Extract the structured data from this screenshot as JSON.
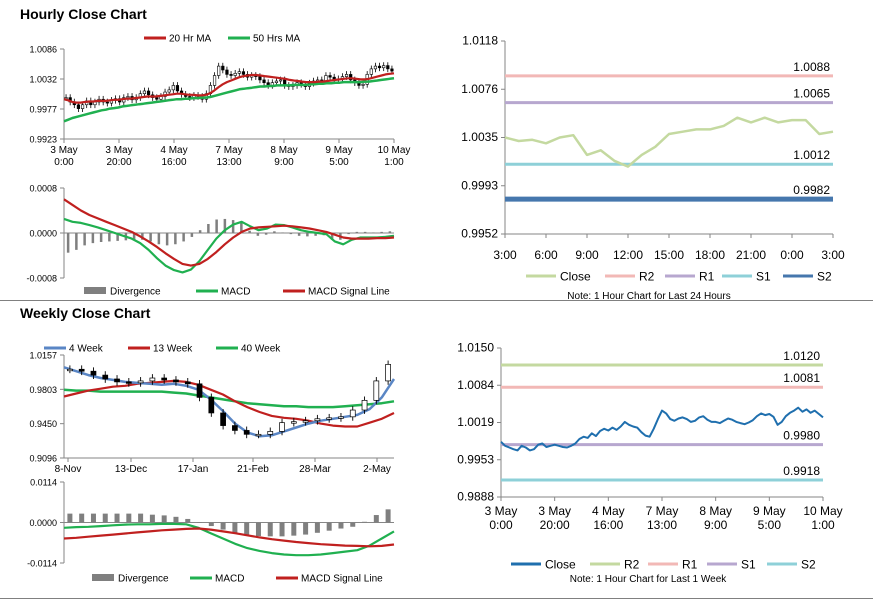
{
  "sections": {
    "hourly_title": "Hourly Close Chart",
    "weekly_title": "Weekly Close Chart"
  },
  "colors": {
    "ma20": "#c0201f",
    "ma50": "#20b050",
    "week4": "#5a86c5",
    "macd": "#20b050",
    "signal": "#c0201f",
    "divergence": "#7f7f7f",
    "close_light": "#c4d9a0",
    "r2": "#f2b8b6",
    "r1": "#b7a7cf",
    "s1": "#8ed0d8",
    "s2": "#4677ad",
    "close_dark": "#1f6fae",
    "r2_dark": "#c4d9a0",
    "r1_dark": "#f2b8b6",
    "s1_dark": "#b7a7cf",
    "s2_dark": "#8ed0d8"
  },
  "chart_data": [
    {
      "id": "hourly_price",
      "type": "candlestick",
      "legend": [
        "20 Hr MA",
        "50 Hrs MA"
      ],
      "y_ticks": [
        "1.0086",
        "1.0032",
        "0.9977",
        "0.9923"
      ],
      "ylim": [
        0.9923,
        1.0086
      ],
      "x_ticks": [
        [
          "3 May",
          "0:00"
        ],
        [
          "3 May",
          "20:00"
        ],
        [
          "4 May",
          "16:00"
        ],
        [
          "7 May",
          "13:00"
        ],
        [
          "8 May",
          "9:00"
        ],
        [
          "9 May",
          "5:00"
        ],
        [
          "10 May",
          "1:00"
        ]
      ],
      "close": [
        0.9998,
        0.999,
        0.9985,
        0.9978,
        0.9985,
        0.9992,
        0.9985,
        0.999,
        0.9995,
        0.999,
        0.9988,
        0.9993,
        0.9996,
        0.999,
        0.9998,
        1.0,
        0.9994,
        0.9998,
        1.0005,
        1.001,
        1.0003,
        0.9998,
        0.9995,
        1.0,
        1.0008,
        1.0012,
        1.002,
        1.001,
        1.0004,
        1.0,
        0.9998,
        1.0002,
        1.0,
        0.9995,
        1.0005,
        1.002,
        1.0038,
        1.0055,
        1.0048,
        1.004,
        1.0038,
        1.0042,
        1.0045,
        1.004,
        1.0035,
        1.0038,
        1.0036,
        1.003,
        1.0025,
        1.002,
        1.0025,
        1.0028,
        1.003,
        1.002,
        1.0018,
        1.002,
        1.0025,
        1.0022,
        1.0018,
        1.0024,
        1.0028,
        1.003,
        1.0028,
        1.0038,
        1.0035,
        1.003,
        1.0032,
        1.0036,
        1.004,
        1.003,
        1.0025,
        1.002,
        1.0022,
        1.004,
        1.005,
        1.0055,
        1.0052,
        1.0056,
        1.005,
        1.0046
      ],
      "ma20": [
        0.9995,
        0.9993,
        0.999,
        0.9989,
        0.9989,
        0.999,
        0.9991,
        0.9991,
        0.9992,
        0.9992,
        0.9992,
        0.9993,
        0.9994,
        0.9994,
        0.9995,
        0.9996,
        0.9996,
        0.9997,
        0.9998,
        0.9999,
        1.0,
        1.0,
        1.0,
        1.0001,
        1.0002,
        1.0003,
        1.0004,
        1.0005,
        1.0005,
        1.0004,
        1.0003,
        1.0003,
        1.0002,
        1.0002,
        1.0003,
        1.0006,
        1.0011,
        1.0017,
        1.0022,
        1.0026,
        1.0029,
        1.0032,
        1.0035,
        1.0037,
        1.0038,
        1.0039,
        1.0039,
        1.0038,
        1.0037,
        1.0036,
        1.0035,
        1.0034,
        1.0033,
        1.0032,
        1.003,
        1.0029,
        1.0028,
        1.0027,
        1.0026,
        1.0026,
        1.0026,
        1.0027,
        1.0027,
        1.0028,
        1.0029,
        1.003,
        1.0031,
        1.0032,
        1.0033,
        1.0033,
        1.0032,
        1.0031,
        1.0031,
        1.0032,
        1.0034,
        1.0036,
        1.0038,
        1.004,
        1.0041,
        1.0042
      ],
      "ma50": [
        0.9955,
        0.9958,
        0.9961,
        0.9963,
        0.9965,
        0.9967,
        0.9969,
        0.9971,
        0.9973,
        0.9975,
        0.9976,
        0.9978,
        0.9979,
        0.998,
        0.9982,
        0.9983,
        0.9984,
        0.9985,
        0.9986,
        0.9987,
        0.9988,
        0.9989,
        0.999,
        0.9991,
        0.9992,
        0.9993,
        0.9994,
        0.9995,
        0.9995,
        0.9996,
        0.9996,
        0.9997,
        0.9997,
        0.9998,
        0.9998,
        0.9999,
        1.0001,
        1.0003,
        1.0005,
        1.0007,
        1.0009,
        1.0011,
        1.0013,
        1.0014,
        1.0015,
        1.0016,
        1.0017,
        1.0018,
        1.0018,
        1.0019,
        1.0019,
        1.002,
        1.002,
        1.002,
        1.002,
        1.0021,
        1.0021,
        1.0021,
        1.0021,
        1.0022,
        1.0022,
        1.0023,
        1.0023,
        1.0024,
        1.0024,
        1.0025,
        1.0025,
        1.0026,
        1.0026,
        1.0026,
        1.0026,
        1.0026,
        1.0027,
        1.0027,
        1.0028,
        1.0029,
        1.003,
        1.0031,
        1.0032,
        1.0033
      ]
    },
    {
      "id": "hourly_macd",
      "type": "macd",
      "y_ticks": [
        "0.0008",
        "0.0000",
        "-0.0008"
      ],
      "ylim": [
        -0.0008,
        0.0008
      ],
      "legend": [
        "Divergence",
        "MACD",
        "MACD Signal Line"
      ],
      "macd": [
        0.00025,
        0.0002,
        0.00018,
        0.00014,
        0.0001,
        5e-05,
        0.0,
        -5e-05,
        -0.0001,
        -0.00018,
        -0.0003,
        -0.00045,
        -0.00058,
        -0.00066,
        -0.0007,
        -0.00065,
        -0.0005,
        -0.0003,
        -0.0001,
        5e-05,
        0.00015,
        0.0002,
        0.00012,
        5e-05,
        8e-05,
        0.00015,
        0.00014,
        0.0001,
        5e-05,
        2e-05,
        0.0,
        -2e-05,
        -0.00015,
        -0.0002,
        -0.00012,
        -8e-05,
        -8e-05,
        -8e-05,
        -7e-05,
        -5e-05
      ],
      "signal": [
        0.0006,
        0.0005,
        0.0004,
        0.00032,
        0.00026,
        0.0002,
        0.00014,
        8e-05,
        2e-05,
        -6e-05,
        -0.00015,
        -0.00025,
        -0.00036,
        -0.00046,
        -0.00055,
        -0.00058,
        -0.00055,
        -0.00046,
        -0.00034,
        -0.0002,
        -8e-05,
        2e-05,
        8e-05,
        0.0001,
        0.00011,
        0.00012,
        0.00013,
        0.00012,
        0.0001,
        8e-05,
        5e-05,
        2e-05,
        -3e-05,
        -8e-05,
        -0.0001,
        -0.0001,
        -0.0001,
        -9e-05,
        -9e-05,
        -8e-05
      ],
      "divergence": [
        -0.00035,
        -0.0003,
        -0.00022,
        -0.00018,
        -0.00016,
        -0.00015,
        -0.00014,
        -0.00013,
        -0.00012,
        -0.00012,
        -0.00015,
        -0.0002,
        -0.00022,
        -0.0002,
        -0.00015,
        -7e-05,
        5e-05,
        0.00016,
        0.00024,
        0.00025,
        0.00023,
        0.00018,
        4e-05,
        -5e-05,
        -3e-05,
        3e-05,
        1e-05,
        -2e-05,
        -5e-05,
        -6e-05,
        -5e-05,
        -4e-05,
        -0.00012,
        -0.00012,
        -2e-05,
        2e-05,
        2e-05,
        1e-05,
        2e-05,
        3e-05
      ]
    },
    {
      "id": "hourly_levels",
      "type": "line",
      "y_ticks": [
        "1.0118",
        "1.0076",
        "1.0035",
        "0.9993",
        "0.9952"
      ],
      "ylim": [
        0.9952,
        1.0118
      ],
      "x_ticks": [
        "3:00",
        "6:00",
        "9:00",
        "12:00",
        "15:00",
        "18:00",
        "21:00",
        "0:00",
        "3:00"
      ],
      "close": [
        1.0035,
        1.0032,
        1.0033,
        1.003,
        1.0035,
        1.0037,
        1.002,
        1.0024,
        1.0015,
        1.001,
        1.002,
        1.0027,
        1.0038,
        1.004,
        1.0042,
        1.0042,
        1.0045,
        1.0052,
        1.0048,
        1.0052,
        1.0048,
        1.005,
        1.005,
        1.0038,
        1.004
      ],
      "levels": [
        {
          "name": "R2",
          "value": 1.0088,
          "label": "1.0088"
        },
        {
          "name": "R1",
          "value": 1.0065,
          "label": "1.0065"
        },
        {
          "name": "S1",
          "value": 1.0012,
          "label": "1.0012"
        },
        {
          "name": "S2",
          "value": 0.9982,
          "label": "0.9982"
        }
      ],
      "legend": [
        "Close",
        "R2",
        "R1",
        "S1",
        "S2"
      ],
      "note": "Note: 1 Hour Chart for Last 24 Hours"
    },
    {
      "id": "weekly_price",
      "type": "candlestick",
      "legend": [
        "4 Week",
        "13 Week",
        "40 Week"
      ],
      "y_ticks": [
        "1.0157",
        "0.9803",
        "0.9450",
        "0.9096"
      ],
      "ylim": [
        0.9096,
        1.0157
      ],
      "x_ticks": [
        "8-Nov",
        "13-Dec",
        "17-Jan",
        "21-Feb",
        "28-Mar",
        "2-May"
      ],
      "close": [
        1.001,
        0.999,
        0.995,
        0.991,
        0.988,
        0.987,
        0.989,
        0.992,
        0.99,
        0.988,
        0.986,
        0.972,
        0.956,
        0.943,
        0.938,
        0.934,
        0.934,
        0.937,
        0.946,
        0.947,
        0.948,
        0.95,
        0.951,
        0.952,
        0.959,
        0.969,
        0.989,
        1.006
      ],
      "week4": [
        1.003,
        0.999,
        0.995,
        0.992,
        0.99,
        0.988,
        0.987,
        0.986,
        0.985,
        0.986,
        0.984,
        0.98,
        0.97,
        0.958,
        0.945,
        0.936,
        0.932,
        0.933,
        0.937,
        0.941,
        0.945,
        0.948,
        0.95,
        0.952,
        0.954,
        0.96,
        0.972,
        0.991
      ],
      "week13": [
        0.973,
        0.976,
        0.979,
        0.981,
        0.983,
        0.984,
        0.986,
        0.987,
        0.988,
        0.989,
        0.988,
        0.985,
        0.98,
        0.975,
        0.968,
        0.962,
        0.957,
        0.953,
        0.951,
        0.95,
        0.948,
        0.945,
        0.943,
        0.942,
        0.942,
        0.946,
        0.95,
        0.956
      ],
      "week40": [
        0.98,
        0.979,
        0.979,
        0.978,
        0.978,
        0.978,
        0.978,
        0.978,
        0.978,
        0.977,
        0.976,
        0.974,
        0.972,
        0.97,
        0.968,
        0.966,
        0.965,
        0.964,
        0.963,
        0.963,
        0.962,
        0.962,
        0.962,
        0.963,
        0.964,
        0.965,
        0.966,
        0.968
      ]
    },
    {
      "id": "weekly_macd",
      "type": "macd",
      "y_ticks": [
        "0.0114",
        "0.0000",
        "-0.0114"
      ],
      "ylim": [
        -0.0114,
        0.0114
      ],
      "legend": [
        "Divergence",
        "MACD",
        "MACD Signal Line"
      ],
      "macd": [
        -0.0015,
        -0.0013,
        -0.0012,
        -0.001,
        -0.0008,
        -0.0006,
        -0.0005,
        -0.0005,
        -0.0004,
        -0.0004,
        -0.0005,
        -0.0015,
        -0.003,
        -0.0045,
        -0.006,
        -0.0072,
        -0.008,
        -0.0086,
        -0.009,
        -0.0092,
        -0.0092,
        -0.009,
        -0.0086,
        -0.0082,
        -0.0078,
        -0.0065,
        -0.0045,
        -0.0025
      ],
      "signal": [
        -0.0045,
        -0.0043,
        -0.004,
        -0.0037,
        -0.0034,
        -0.0031,
        -0.0028,
        -0.0025,
        -0.0022,
        -0.002,
        -0.0018,
        -0.0017,
        -0.002,
        -0.0025,
        -0.003,
        -0.0036,
        -0.0042,
        -0.0047,
        -0.0051,
        -0.0055,
        -0.0058,
        -0.0061,
        -0.0063,
        -0.0065,
        -0.0066,
        -0.0067,
        -0.0066,
        -0.0062
      ],
      "divergence": [
        0.0025,
        0.0025,
        0.0025,
        0.0025,
        0.0025,
        0.0025,
        0.0025,
        0.0022,
        0.002,
        0.0016,
        0.001,
        0.0,
        -0.001,
        -0.002,
        -0.003,
        -0.0036,
        -0.0038,
        -0.0039,
        -0.0039,
        -0.0037,
        -0.0034,
        -0.0029,
        -0.0023,
        -0.0017,
        -0.0012,
        0.0002,
        0.0021,
        0.0037
      ]
    },
    {
      "id": "weekly_levels",
      "type": "line",
      "y_ticks": [
        "1.0150",
        "1.0084",
        "1.0019",
        "0.9953",
        "0.9888"
      ],
      "ylim": [
        0.9888,
        1.015
      ],
      "x_ticks": [
        [
          "3 May",
          "0:00"
        ],
        [
          "3 May",
          "20:00"
        ],
        [
          "4 May",
          "16:00"
        ],
        [
          "7 May",
          "13:00"
        ],
        [
          "8 May",
          "9:00"
        ],
        [
          "9 May",
          "5:00"
        ],
        [
          "10 May",
          "1:00"
        ]
      ],
      "close": [
        0.9985,
        0.9978,
        0.9975,
        0.9972,
        0.997,
        0.9978,
        0.9975,
        0.997,
        0.9972,
        0.998,
        0.9982,
        0.9976,
        0.9978,
        0.998,
        0.9978,
        0.9976,
        0.9975,
        0.9978,
        0.9982,
        0.999,
        0.9994,
        0.9992,
        1.0,
        0.9995,
        1.0004,
        1.0008,
        1.0005,
        1.001,
        1.0006,
        1.0012,
        1.002,
        1.0015,
        1.0012,
        1.001,
        1.0002,
        0.9996,
        0.9994,
        1.0008,
        1.0025,
        1.004,
        1.0035,
        1.0025,
        1.0022,
        1.0026,
        1.0028,
        1.0025,
        1.002,
        1.0022,
        1.0028,
        1.003,
        1.0024,
        1.002,
        1.002,
        1.0018,
        1.0022,
        1.0026,
        1.0024,
        1.002,
        1.0018,
        1.0016,
        1.0019,
        1.0023,
        1.003,
        1.0035,
        1.0032,
        1.0034,
        1.0029,
        1.0015,
        1.002,
        1.003,
        1.0036,
        1.004,
        1.0045,
        1.0038,
        1.0042,
        1.0036,
        1.004,
        1.0034,
        1.0028
      ],
      "levels": [
        {
          "name": "R2",
          "value": 1.012,
          "label": "1.0120"
        },
        {
          "name": "R1",
          "value": 1.0081,
          "label": "1.0081"
        },
        {
          "name": "S1",
          "value": 0.998,
          "label": "0.9980"
        },
        {
          "name": "S2",
          "value": 0.9918,
          "label": "0.9918"
        }
      ],
      "legend": [
        "Close",
        "R2",
        "R1",
        "S1",
        "S2"
      ],
      "note": "Note: 1 Hour Chart for Last 1 Week"
    }
  ]
}
